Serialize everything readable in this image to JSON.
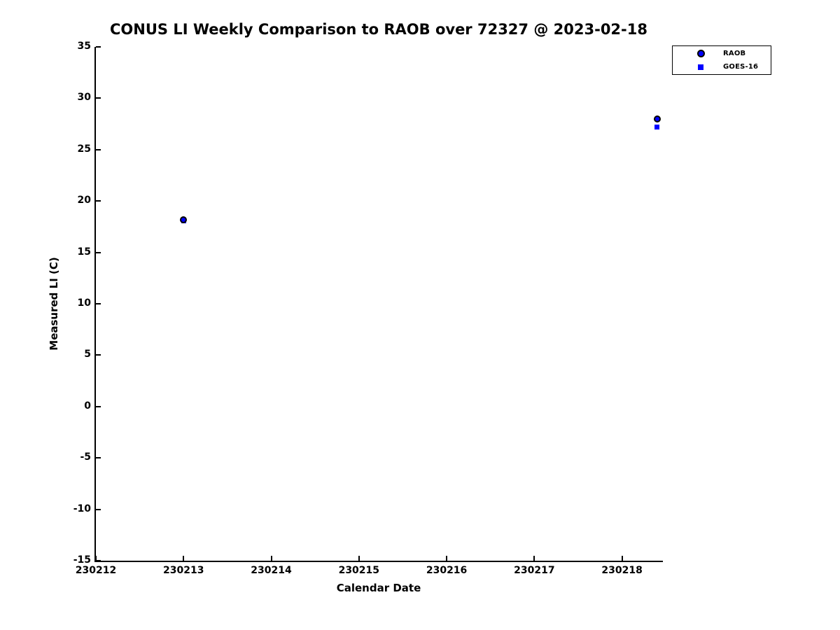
{
  "title": "CONUS LI Weekly Comparison to RAOB over 72327 @ 2023-02-18",
  "chart_data": {
    "type": "scatter",
    "title": "CONUS LI Weekly Comparison to RAOB over 72327 @ 2023-02-18",
    "xlabel": "Calendar Date",
    "ylabel": "Measured LI (C)",
    "xlim": [
      230212,
      230218.45
    ],
    "ylim": [
      -15,
      35
    ],
    "xticks": [
      230212,
      230213,
      230214,
      230215,
      230216,
      230217,
      230218
    ],
    "yticks": [
      -15,
      -10,
      -5,
      0,
      5,
      10,
      15,
      20,
      25,
      30,
      35
    ],
    "grid": false,
    "legend_position": "top-right-outside",
    "series": [
      {
        "name": "RAOB",
        "marker": "circle",
        "color": "#0000ff",
        "edge_color": "#000000",
        "points": [
          {
            "x": 230213.0,
            "y": 18.2
          },
          {
            "x": 230218.4,
            "y": 28.0
          }
        ]
      },
      {
        "name": "GOES-16",
        "marker": "square",
        "color": "#0000ff",
        "points": [
          {
            "x": 230213.0,
            "y": 18.1
          },
          {
            "x": 230218.4,
            "y": 27.2
          }
        ]
      }
    ],
    "colors": {
      "marker_blue": "#0000ff",
      "marker_edge": "#000000",
      "axes": "#000000",
      "background": "#ffffff"
    }
  }
}
